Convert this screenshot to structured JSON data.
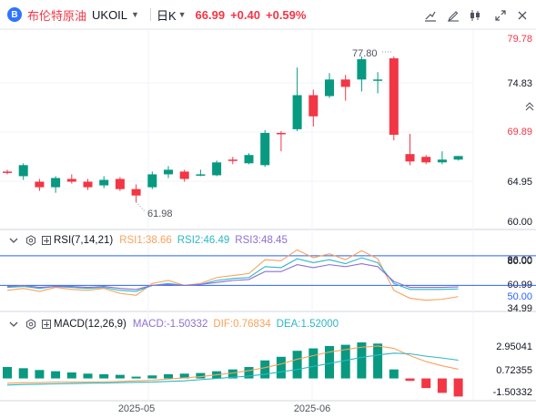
{
  "toolbar": {
    "logo_glyph": "B",
    "symbol_name": "布伦特原油",
    "symbol_ticker": "UKOIL",
    "timeframe": "日K",
    "last_price": "66.99",
    "change": "+0.40",
    "change_percent": "+0.59%",
    "icons": [
      "draw-line-icon",
      "edit-pencil-icon",
      "candle-style-icon",
      "fullscreen-icon",
      "close-icon"
    ]
  },
  "colors": {
    "up": "#089981",
    "down": "#f23645",
    "rsi1": "#f7a35c",
    "rsi2": "#2db7c6",
    "rsi3": "#8e6fd3",
    "macd": "#8e6fd3",
    "dif": "#f7a35c",
    "dea": "#2db7c6",
    "level_line": "#2962ff"
  },
  "price_pane": {
    "axis_ticks": [
      "79.78",
      "74.83",
      "69.89",
      "64.95",
      "60.00"
    ],
    "high_label": "77.80",
    "low_label": "61.98"
  },
  "rsi_pane": {
    "title": "RSI(7,14,21)",
    "rsi1_label": "RSI1:38.66",
    "rsi2_label": "RSI2:46.49",
    "rsi3_label": "RSI3:48.45",
    "axis_ticks": [
      "86.00",
      "80.00",
      "60.99",
      "50.00",
      "34.99"
    ]
  },
  "macd_pane": {
    "title": "MACD(12,26,9)",
    "macd_label": "MACD:-1.50332",
    "dif_label": "DIF:0.76834",
    "dea_label": "DEA:1.52000",
    "axis_ticks": [
      "2.95041",
      "0.72355",
      "-1.50332"
    ]
  },
  "time_axis": {
    "labels": [
      "2025-05",
      "2025-06"
    ]
  },
  "chart_data": {
    "type": "candlestick",
    "symbol": "UKOIL",
    "timeframe": "日K",
    "price_axis": {
      "min": 60.0,
      "max": 79.78
    },
    "candles": [
      {
        "o": 65.3,
        "h": 65.5,
        "l": 65.0,
        "c": 65.2
      },
      {
        "o": 64.8,
        "h": 66.2,
        "l": 64.4,
        "c": 66.0
      },
      {
        "o": 64.2,
        "h": 64.5,
        "l": 63.2,
        "c": 63.6
      },
      {
        "o": 63.6,
        "h": 64.8,
        "l": 63.0,
        "c": 64.6
      },
      {
        "o": 64.5,
        "h": 65.0,
        "l": 64.0,
        "c": 64.2
      },
      {
        "o": 64.2,
        "h": 64.5,
        "l": 63.3,
        "c": 63.6
      },
      {
        "o": 63.8,
        "h": 64.8,
        "l": 63.5,
        "c": 64.4
      },
      {
        "o": 64.5,
        "h": 64.7,
        "l": 63.2,
        "c": 63.4
      },
      {
        "o": 63.4,
        "h": 63.9,
        "l": 61.98,
        "c": 62.7
      },
      {
        "o": 63.6,
        "h": 65.3,
        "l": 63.4,
        "c": 65.0
      },
      {
        "o": 65.0,
        "h": 65.9,
        "l": 64.6,
        "c": 65.5
      },
      {
        "o": 65.3,
        "h": 65.5,
        "l": 64.2,
        "c": 64.5
      },
      {
        "o": 65.0,
        "h": 65.5,
        "l": 64.8,
        "c": 65.0
      },
      {
        "o": 64.9,
        "h": 66.5,
        "l": 64.8,
        "c": 66.3
      },
      {
        "o": 66.6,
        "h": 66.9,
        "l": 66.1,
        "c": 66.5
      },
      {
        "o": 66.2,
        "h": 67.3,
        "l": 66.1,
        "c": 67.1
      },
      {
        "o": 66.0,
        "h": 69.8,
        "l": 65.8,
        "c": 69.5
      },
      {
        "o": 69.5,
        "h": 69.7,
        "l": 67.5,
        "c": 69.4
      },
      {
        "o": 69.9,
        "h": 76.6,
        "l": 69.7,
        "c": 73.6
      },
      {
        "o": 73.6,
        "h": 74.2,
        "l": 70.2,
        "c": 71.3
      },
      {
        "o": 73.5,
        "h": 76.0,
        "l": 73.3,
        "c": 75.3
      },
      {
        "o": 75.3,
        "h": 75.8,
        "l": 73.0,
        "c": 74.5
      },
      {
        "o": 75.3,
        "h": 77.8,
        "l": 74.0,
        "c": 77.5
      },
      {
        "o": 75.2,
        "h": 76.1,
        "l": 73.8,
        "c": 75.3
      },
      {
        "o": 77.6,
        "h": 77.8,
        "l": 68.7,
        "c": 69.3
      },
      {
        "o": 67.2,
        "h": 69.4,
        "l": 66.0,
        "c": 66.4
      },
      {
        "o": 66.9,
        "h": 67.1,
        "l": 66.1,
        "c": 66.3
      },
      {
        "o": 66.3,
        "h": 67.5,
        "l": 66.1,
        "c": 66.6
      },
      {
        "o": 66.6,
        "h": 67.0,
        "l": 66.5,
        "c": 66.99
      }
    ],
    "rsi": {
      "range": [
        20,
        90
      ],
      "levels": [
        80,
        50
      ],
      "rsi1": [
        45,
        47,
        44,
        48,
        46,
        45,
        47,
        42,
        40,
        52,
        55,
        50,
        52,
        58,
        60,
        62,
        76,
        75,
        86,
        78,
        82,
        76,
        85,
        77,
        45,
        37,
        35,
        36,
        38.66
      ],
      "rsi2": [
        48,
        49,
        47,
        49,
        48,
        47,
        48,
        45,
        44,
        50,
        52,
        50,
        51,
        55,
        57,
        58,
        69,
        68,
        77,
        73,
        76,
        72,
        78,
        73,
        52,
        46,
        46,
        46,
        46.49
      ],
      "rsi3": [
        49,
        50,
        48,
        49,
        49,
        48,
        49,
        47,
        46,
        50,
        51,
        50,
        51,
        53,
        55,
        56,
        64,
        64,
        71,
        68,
        71,
        69,
        72,
        69,
        54,
        48,
        48,
        48,
        48.45
      ]
    },
    "macd": {
      "range": [
        -1.7,
        3.3
      ],
      "histogram": [
        0.95,
        0.85,
        0.7,
        0.6,
        0.5,
        0.4,
        0.35,
        0.3,
        0.15,
        0.25,
        0.35,
        0.4,
        0.45,
        0.6,
        0.75,
        0.95,
        1.5,
        1.8,
        2.3,
        2.5,
        2.7,
        2.8,
        3.0,
        2.9,
        0.75,
        -0.2,
        -0.8,
        -1.2,
        -1.50332
      ],
      "dif": [
        -0.4,
        -0.35,
        -0.35,
        -0.3,
        -0.3,
        -0.3,
        -0.28,
        -0.25,
        -0.2,
        -0.15,
        -0.05,
        0.05,
        0.15,
        0.3,
        0.45,
        0.65,
        0.9,
        1.2,
        1.6,
        1.9,
        2.2,
        2.4,
        2.6,
        2.7,
        2.5,
        1.9,
        1.4,
        1.05,
        0.76834
      ],
      "dea": [
        -0.55,
        -0.5,
        -0.48,
        -0.45,
        -0.43,
        -0.4,
        -0.38,
        -0.35,
        -0.32,
        -0.3,
        -0.25,
        -0.2,
        -0.1,
        0.0,
        0.1,
        0.2,
        0.35,
        0.55,
        0.75,
        1.0,
        1.25,
        1.5,
        1.75,
        1.95,
        2.1,
        2.05,
        1.85,
        1.7,
        1.52
      ]
    }
  }
}
